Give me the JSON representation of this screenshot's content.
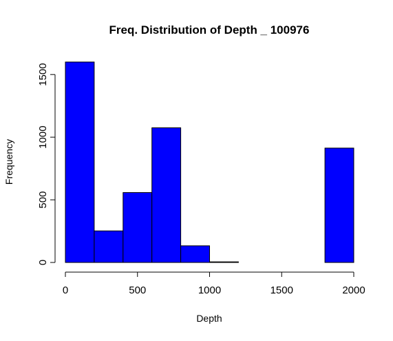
{
  "chart_data": {
    "type": "bar",
    "title": "Freq. Distribution of Depth _ 100976",
    "xlabel": "Depth",
    "ylabel": "Frequency",
    "bins": [
      {
        "start": 0,
        "end": 200,
        "value": 1600
      },
      {
        "start": 200,
        "end": 400,
        "value": 252
      },
      {
        "start": 400,
        "end": 600,
        "value": 558
      },
      {
        "start": 600,
        "end": 800,
        "value": 1075
      },
      {
        "start": 800,
        "end": 1000,
        "value": 133
      },
      {
        "start": 1000,
        "end": 1200,
        "value": 5
      },
      {
        "start": 1200,
        "end": 1400,
        "value": 0
      },
      {
        "start": 1400,
        "end": 1600,
        "value": 0
      },
      {
        "start": 1600,
        "end": 1800,
        "value": 0
      },
      {
        "start": 1800,
        "end": 2000,
        "value": 913
      }
    ],
    "xlim": [
      0,
      2000
    ],
    "ylim": [
      0,
      1600
    ],
    "x_ticks": [
      "0",
      "500",
      "1000",
      "1500",
      "2000"
    ],
    "y_ticks": [
      "0",
      "500",
      "1000",
      "1500"
    ],
    "grid": false,
    "colors": {
      "bar_fill": "#0000ff",
      "bar_stroke": "#000000",
      "axis": "#000000"
    }
  }
}
